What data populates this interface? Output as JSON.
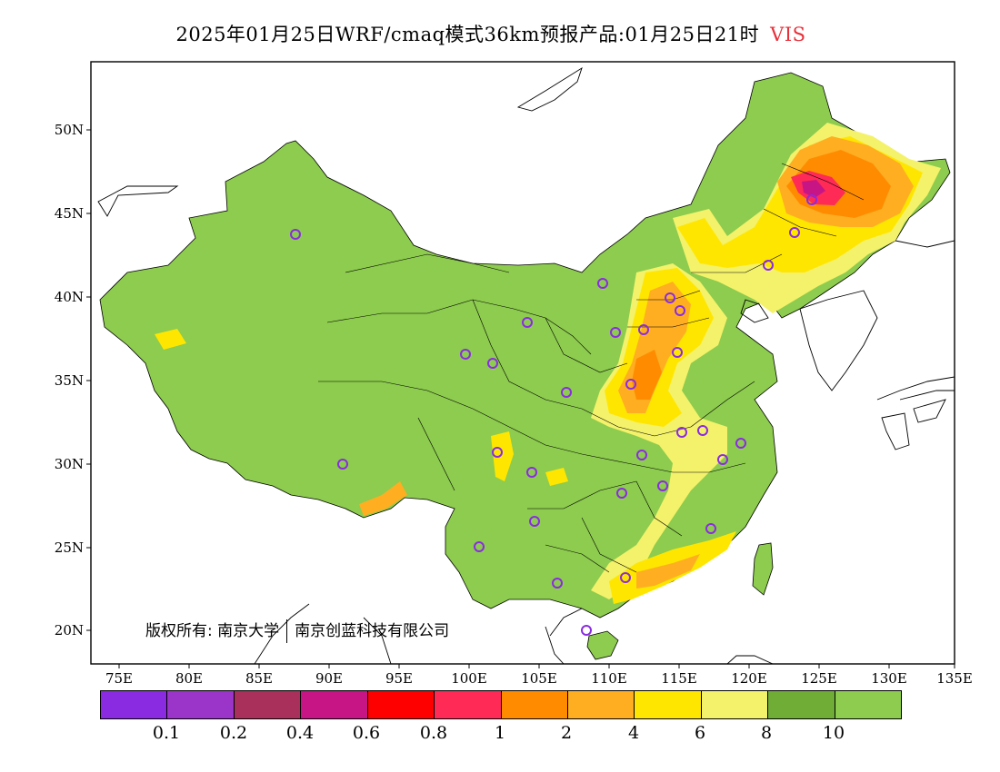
{
  "title": {
    "main": "2025年01月25日WRF/cmaq模式36km预报产品:01月25日21时",
    "variable": "VIS"
  },
  "axes": {
    "lat_labels": [
      "50N",
      "45N",
      "40N",
      "35N",
      "30N",
      "25N",
      "20N"
    ],
    "lon_labels": [
      "75E",
      "80E",
      "85E",
      "90E",
      "95E",
      "100E",
      "105E",
      "110E",
      "115E",
      "120E",
      "125E",
      "130E",
      "135E"
    ]
  },
  "copyright": {
    "left": "版权所有: 南京大学",
    "right": "南京创蓝科技有限公司"
  },
  "legend": {
    "colors": [
      "#8a2be2",
      "#9b35c9",
      "#a8305a",
      "#c71585",
      "#ff0000",
      "#ff2a55",
      "#ff8c00",
      "#ffae22",
      "#ffe600",
      "#f4f26a",
      "#6fad36",
      "#8dcc4e"
    ],
    "ticks": [
      "0.1",
      "0.2",
      "0.4",
      "0.6",
      "0.8",
      "1",
      "2",
      "4",
      "6",
      "8",
      "10"
    ]
  },
  "colors": {
    "land": "#8dcc4e",
    "frame": "#000000",
    "station": "#8a2be2",
    "title_variable": "#e8303a"
  }
}
